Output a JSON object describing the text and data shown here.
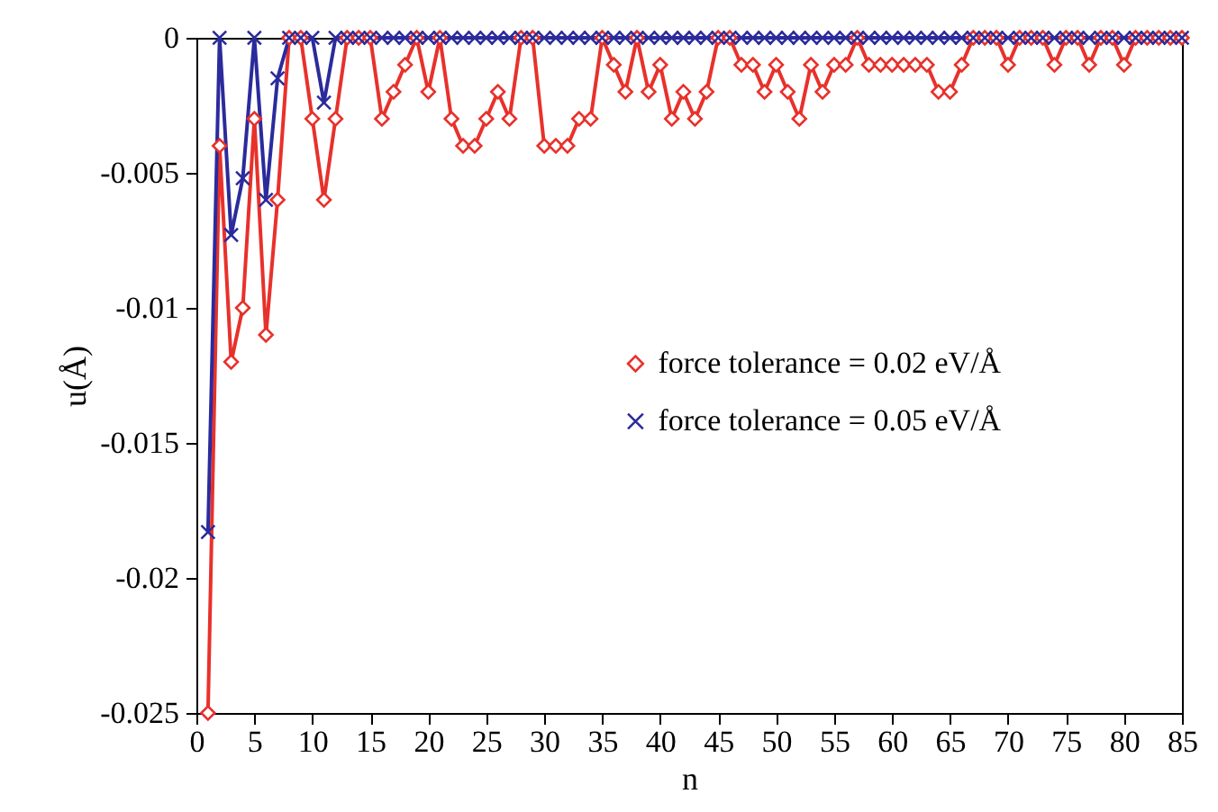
{
  "chart_data": {
    "type": "line",
    "xlabel": "n",
    "ylabel": "u(Å)",
    "x": [
      1,
      2,
      3,
      4,
      5,
      6,
      7,
      8,
      9,
      10,
      11,
      12,
      13,
      14,
      15,
      16,
      17,
      18,
      19,
      20,
      21,
      22,
      23,
      24,
      25,
      26,
      27,
      28,
      29,
      30,
      31,
      32,
      33,
      34,
      35,
      36,
      37,
      38,
      39,
      40,
      41,
      42,
      43,
      44,
      45,
      46,
      47,
      48,
      49,
      50,
      51,
      52,
      53,
      54,
      55,
      56,
      57,
      58,
      59,
      60,
      61,
      62,
      63,
      64,
      65,
      66,
      67,
      68,
      69,
      70,
      71,
      72,
      73,
      74,
      75,
      76,
      77,
      78,
      79,
      80,
      81,
      82,
      83,
      84,
      85
    ],
    "series": [
      {
        "name": "force tolerance = 0.02 eV/Å",
        "color": "#e8312b",
        "marker": "diamond",
        "values": [
          -0.025,
          -0.004,
          -0.012,
          -0.01,
          -0.003,
          -0.011,
          -0.006,
          0,
          0,
          -0.003,
          -0.006,
          -0.003,
          0,
          0,
          0,
          -0.003,
          -0.002,
          -0.001,
          0,
          -0.002,
          0,
          -0.003,
          -0.004,
          -0.004,
          -0.003,
          -0.002,
          -0.003,
          0,
          0,
          -0.004,
          -0.004,
          -0.004,
          -0.003,
          -0.003,
          0,
          -0.001,
          -0.002,
          0,
          -0.002,
          -0.001,
          -0.003,
          -0.002,
          -0.003,
          -0.002,
          0,
          0,
          -0.001,
          -0.001,
          -0.002,
          -0.001,
          -0.002,
          -0.003,
          -0.001,
          -0.002,
          -0.001,
          -0.001,
          0,
          -0.001,
          -0.001,
          -0.001,
          -0.001,
          -0.001,
          -0.001,
          -0.002,
          -0.002,
          -0.001,
          0,
          0,
          0,
          -0.001,
          0,
          0,
          0,
          -0.001,
          0,
          0,
          -0.001,
          0,
          0,
          -0.001,
          0,
          0,
          0,
          0,
          0
        ]
      },
      {
        "name": "force tolerance = 0.05 eV/Å",
        "color": "#2b2b9c",
        "marker": "cross",
        "values": [
          -0.0183,
          0,
          -0.0073,
          -0.0052,
          0,
          -0.006,
          -0.0015,
          0,
          0,
          0,
          -0.0024,
          0,
          0,
          0,
          0,
          0,
          0,
          0,
          0,
          0,
          0,
          0,
          0,
          0,
          0,
          0,
          0,
          0,
          0,
          0,
          0,
          0,
          0,
          0,
          0,
          0,
          0,
          0,
          0,
          0,
          0,
          0,
          0,
          0,
          0,
          0,
          0,
          0,
          0,
          0,
          0,
          0,
          0,
          0,
          0,
          0,
          0,
          0,
          0,
          0,
          0,
          0,
          0,
          0,
          0,
          0,
          0,
          0,
          0,
          0,
          0,
          0,
          0,
          0,
          0,
          0,
          0,
          0,
          0,
          0,
          0,
          0,
          0,
          0,
          0
        ]
      }
    ],
    "xlim": [
      0,
      85
    ],
    "xticks": [
      0,
      5,
      10,
      15,
      20,
      25,
      30,
      35,
      40,
      45,
      50,
      55,
      60,
      65,
      70,
      75,
      80,
      85
    ],
    "ylim": [
      -0.025,
      0
    ],
    "yticks": [
      0,
      -0.005,
      -0.01,
      -0.015,
      -0.02,
      -0.025
    ],
    "grid": false,
    "legend": "right"
  }
}
